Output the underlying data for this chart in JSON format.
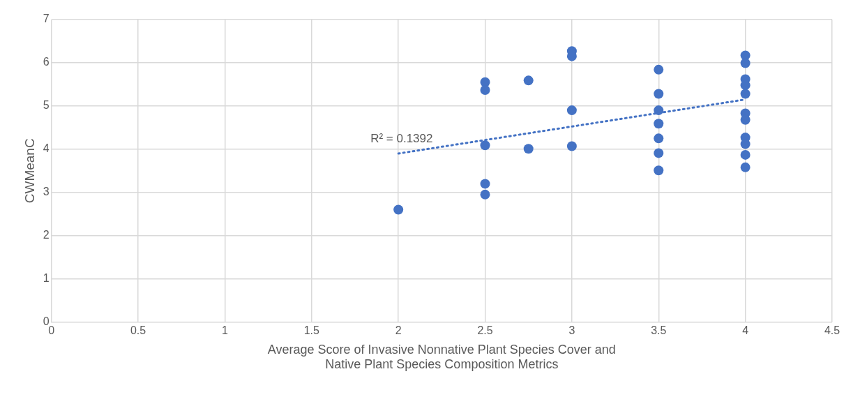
{
  "chart_data": {
    "type": "scatter",
    "xlabel": "Average Score of Invasive Nonnative Plant Species Cover and Native Plant Species Composition Metrics",
    "ylabel": "CWMeanC",
    "xlim": [
      0,
      4.5
    ],
    "xticks": [
      0,
      0.5,
      1,
      1.5,
      2,
      2.5,
      3,
      3.5,
      4,
      4.5
    ],
    "ylim": [
      0,
      7
    ],
    "yticks": [
      0,
      1,
      2,
      3,
      4,
      5,
      6,
      7
    ],
    "grid": true,
    "legend": false,
    "marker": "circle",
    "annotations": [
      "R² = 0.1392"
    ],
    "series": [
      {
        "color": "#4472c4",
        "x": [
          2,
          2.5,
          2.5,
          2.5,
          2.5,
          2.5,
          2.75,
          2.75,
          3,
          3,
          3,
          3,
          3.5,
          3.5,
          3.5,
          3.5,
          3.5,
          3.5,
          3.5,
          4,
          4,
          4,
          4,
          4,
          4,
          4,
          4,
          4,
          4,
          4
        ],
        "values": [
          2.6,
          5.55,
          5.37,
          4.09,
          3.2,
          2.95,
          5.59,
          4.01,
          6.27,
          6.15,
          4.9,
          4.07,
          5.84,
          5.28,
          4.9,
          4.59,
          4.25,
          3.91,
          3.51,
          6.17,
          5.99,
          5.62,
          5.48,
          5.28,
          4.83,
          4.68,
          4.27,
          4.12,
          3.87,
          3.58
        ]
      },
      {
        "type": "line",
        "color": "#4472c4",
        "line_style": "dotted",
        "marker": "none",
        "x": [
          2,
          4
        ],
        "values": [
          3.9,
          5.15
        ]
      }
    ]
  }
}
